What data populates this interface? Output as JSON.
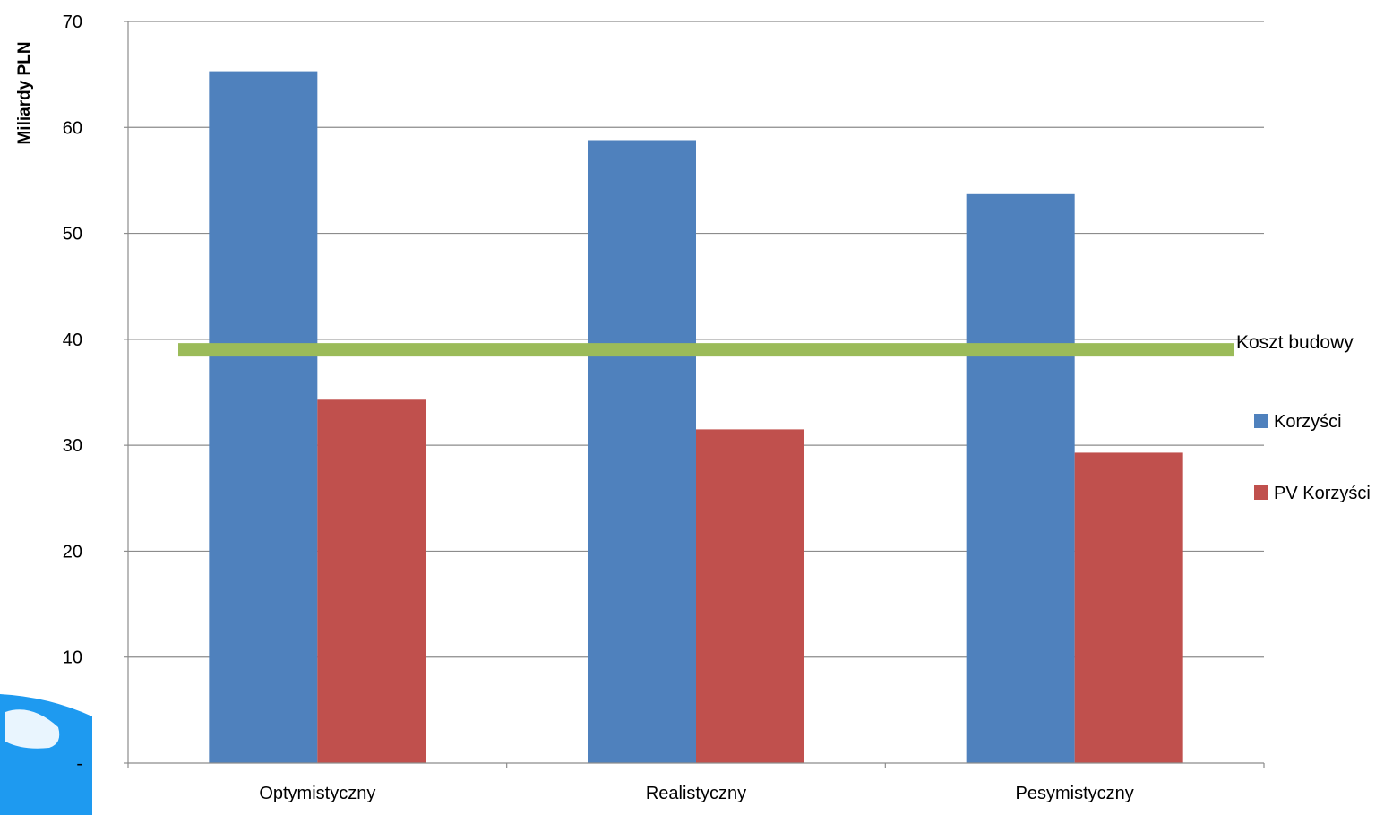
{
  "chart_data": {
    "type": "bar",
    "ylabel": "Miliardy PLN",
    "xlabel": "",
    "categories": [
      "Optymistyczny",
      "Realistyczny",
      "Pesymistyczny"
    ],
    "series": [
      {
        "name": "Korzyści",
        "values": [
          65.3,
          58.8,
          53.7
        ],
        "color": "#4f81bd"
      },
      {
        "name": "PV Korzyści",
        "values": [
          34.3,
          31.5,
          29.3
        ],
        "color": "#c0504d"
      }
    ],
    "reference_line": {
      "label": "Koszt budowy",
      "value": 39,
      "color": "#9bbb59"
    },
    "ylim": [
      0,
      70
    ],
    "yticks": [
      0,
      10,
      20,
      30,
      40,
      50,
      60,
      70
    ],
    "ytick_labels": [
      "-",
      "10",
      "20",
      "30",
      "40",
      "50",
      "60",
      "70"
    ],
    "grid": true,
    "legend_position": "right"
  }
}
